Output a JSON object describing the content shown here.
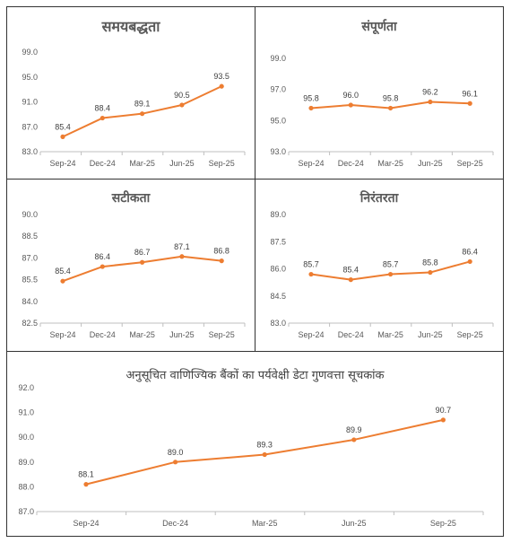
{
  "theme": {
    "line_color": "#ED7D31",
    "axis_color": "#7F7F7F",
    "label_color": "#404040",
    "tick_color": "#595959",
    "border_color": "#333333"
  },
  "chart_data": [
    {
      "type": "line",
      "title": "समयबद्धता",
      "categories": [
        "Sep-24",
        "Dec-24",
        "Mar-25",
        "Jun-25",
        "Sep-25"
      ],
      "values": [
        85.4,
        88.4,
        89.1,
        90.5,
        93.5
      ],
      "ylim": [
        83.0,
        99.0
      ],
      "yticks": [
        "99.0",
        "95.0",
        "91.0",
        "87.0",
        "83.0"
      ],
      "grid": false
    },
    {
      "type": "line",
      "title": "संपूर्णता",
      "categories": [
        "Sep-24",
        "Dec-24",
        "Mar-25",
        "Jun-25",
        "Sep-25"
      ],
      "values": [
        95.8,
        96.0,
        95.8,
        96.2,
        96.1
      ],
      "ylim": [
        93.0,
        99.0
      ],
      "yticks": [
        "99.0",
        "97.0",
        "95.0",
        "93.0"
      ],
      "grid": false
    },
    {
      "type": "line",
      "title": "सटीकता",
      "categories": [
        "Sep-24",
        "Dec-24",
        "Mar-25",
        "Jun-25",
        "Sep-25"
      ],
      "values": [
        85.4,
        86.4,
        86.7,
        87.1,
        86.8
      ],
      "ylim": [
        82.5,
        90.0
      ],
      "yticks": [
        "90.0",
        "88.5",
        "87.0",
        "85.5",
        "84.0",
        "82.5"
      ],
      "grid": false
    },
    {
      "type": "line",
      "title": "निरंतरता",
      "categories": [
        "Sep-24",
        "Dec-24",
        "Mar-25",
        "Jun-25",
        "Sep-25"
      ],
      "values": [
        85.7,
        85.4,
        85.7,
        85.8,
        86.4
      ],
      "ylim": [
        83.0,
        89.0
      ],
      "yticks": [
        "89.0",
        "87.5",
        "86.0",
        "84.5",
        "83.0"
      ],
      "grid": false
    },
    {
      "type": "line",
      "title": "अनुसूचित वाणिज्यिक बैंकों का पर्यवेक्षी डेटा गुणवत्ता सूचकांक",
      "categories": [
        "Sep-24",
        "Dec-24",
        "Mar-25",
        "Jun-25",
        "Sep-25"
      ],
      "values": [
        88.1,
        89.0,
        89.3,
        89.9,
        90.7
      ],
      "ylim": [
        87.0,
        92.0
      ],
      "yticks": [
        "92.0",
        "91.0",
        "90.0",
        "89.0",
        "88.0",
        "87.0"
      ],
      "grid": false
    }
  ]
}
